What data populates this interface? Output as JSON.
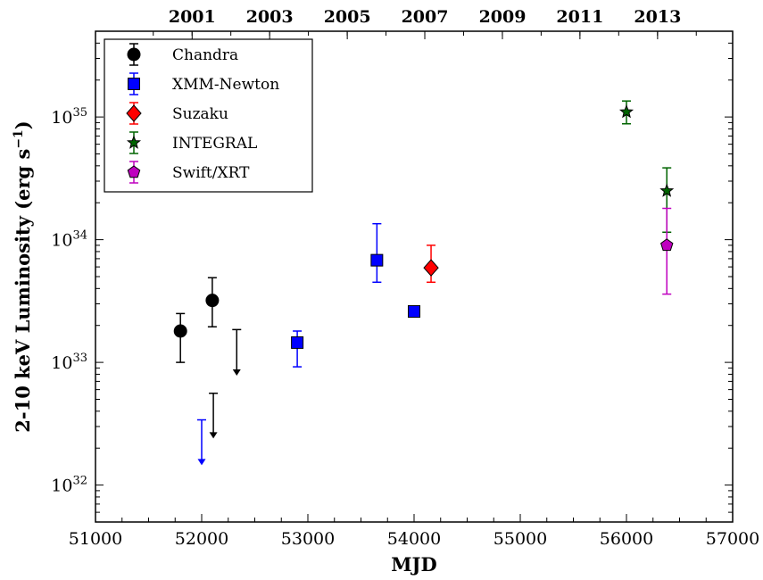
{
  "chart_data": {
    "type": "scatter",
    "xlabel": "MJD",
    "ylabel": "2-10 keV Luminosity (erg s⁻¹)",
    "ylabel_main": "2-10 keV Luminosity (erg s",
    "ylabel_sup": "−1",
    "ylabel_close": ")",
    "xlim": [
      51000,
      57000
    ],
    "ylim": [
      5e+31,
      5e+35
    ],
    "yscale": "log",
    "legend_position": "top-left",
    "grid": false,
    "x_ticks": [
      51000,
      52000,
      53000,
      54000,
      55000,
      56000,
      57000
    ],
    "x_tick_labels": [
      "51000",
      "52000",
      "53000",
      "54000",
      "55000",
      "56000",
      "57000"
    ],
    "y_ticks": [
      {
        "value": 1e+32,
        "base": "10",
        "exp": "32"
      },
      {
        "value": 1e+33,
        "base": "10",
        "exp": "33"
      },
      {
        "value": 1e+34,
        "base": "10",
        "exp": "34"
      },
      {
        "value": 1e+35,
        "base": "10",
        "exp": "35"
      }
    ],
    "top_axis": [
      {
        "label": "2001",
        "mjd": 51910
      },
      {
        "label": "2003",
        "mjd": 52640
      },
      {
        "label": "2005",
        "mjd": 53371
      },
      {
        "label": "2007",
        "mjd": 54101
      },
      {
        "label": "2009",
        "mjd": 54832
      },
      {
        "label": "2011",
        "mjd": 55562
      },
      {
        "label": "2013",
        "mjd": 56293
      }
    ],
    "series": [
      {
        "name": "Chandra",
        "color": "#000000",
        "marker": "circle",
        "points": [
          {
            "x": 51800,
            "y": 1.8e+33,
            "ylo": 1e+33,
            "yhi": 2.5e+33
          },
          {
            "x": 52100,
            "y": 3.2e+33,
            "ylo": 1.95e+33,
            "yhi": 4.9e+33
          }
        ],
        "upper_limits": [
          {
            "x": 52110,
            "y": 5.6e+32,
            "arrow_to": 2.4e+32
          },
          {
            "x": 52330,
            "y": 1.85e+33,
            "arrow_to": 7.8e+32
          }
        ]
      },
      {
        "name": "XMM-Newton",
        "color": "#0000ff",
        "marker": "square",
        "points": [
          {
            "x": 52900,
            "y": 1.45e+33,
            "ylo": 9.2e+32,
            "yhi": 1.8e+33
          },
          {
            "x": 53650,
            "y": 6.8e+33,
            "ylo": 4.5e+33,
            "yhi": 1.35e+34
          },
          {
            "x": 54000,
            "y": 2.6e+33
          }
        ],
        "upper_limits": [
          {
            "x": 52000,
            "y": 3.4e+32,
            "arrow_to": 1.45e+32
          }
        ]
      },
      {
        "name": "Suzaku",
        "color": "#ff0000",
        "marker": "diamond",
        "points": [
          {
            "x": 54160,
            "y": 5.9e+33,
            "ylo": 4.5e+33,
            "yhi": 9e+33
          }
        ],
        "upper_limits": []
      },
      {
        "name": "INTEGRAL",
        "color": "#006400",
        "marker": "star",
        "points": [
          {
            "x": 56000,
            "y": 1.1e+35,
            "ylo": 8.8e+34,
            "yhi": 1.35e+35
          },
          {
            "x": 56380,
            "y": 2.5e+34,
            "ylo": 1.15e+34,
            "yhi": 3.85e+34
          }
        ],
        "upper_limits": []
      },
      {
        "name": "Swift/XRT",
        "color": "#bf00bf",
        "marker": "pentagon",
        "points": [
          {
            "x": 56380,
            "y": 9e+33,
            "ylo": 3.6e+33,
            "yhi": 1.8e+34
          }
        ],
        "upper_limits": []
      }
    ]
  }
}
